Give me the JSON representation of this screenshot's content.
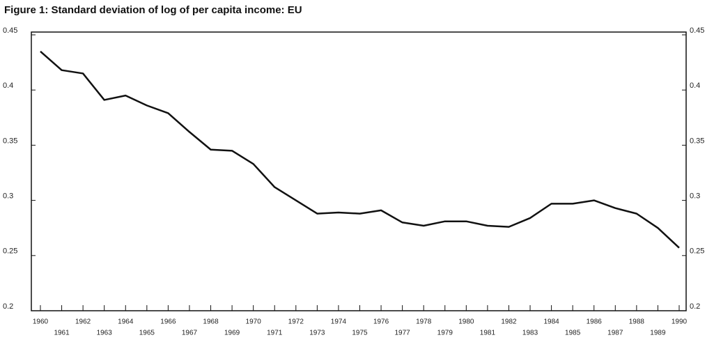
{
  "chart_data": {
    "type": "line",
    "title": "Figure 1:  Standard deviation of log of per capita income: EU",
    "x": [
      1960,
      1961,
      1962,
      1963,
      1964,
      1965,
      1966,
      1967,
      1968,
      1969,
      1970,
      1971,
      1972,
      1973,
      1974,
      1975,
      1976,
      1977,
      1978,
      1979,
      1980,
      1981,
      1982,
      1983,
      1984,
      1985,
      1986,
      1987,
      1988,
      1989,
      1990
    ],
    "xlim": [
      1960,
      1990
    ],
    "series": [
      {
        "color": "#111111",
        "values": [
          0.435,
          0.418,
          0.415,
          0.391,
          0.395,
          0.386,
          0.379,
          0.362,
          0.346,
          0.345,
          0.333,
          0.312,
          0.3,
          0.288,
          0.289,
          0.288,
          0.291,
          0.28,
          0.277,
          0.281,
          0.281,
          0.277,
          0.276,
          0.284,
          0.297,
          0.297,
          0.3,
          0.293,
          0.288,
          0.275,
          0.257
        ]
      }
    ],
    "ylim": [
      0.2,
      0.45
    ],
    "yticks": [
      0.2,
      0.25,
      0.3,
      0.35,
      0.4,
      0.45
    ],
    "y2lim": [
      0.2,
      0.45
    ],
    "y2ticks": [
      0.2,
      0.25,
      0.3,
      0.35,
      0.4,
      0.45
    ]
  }
}
